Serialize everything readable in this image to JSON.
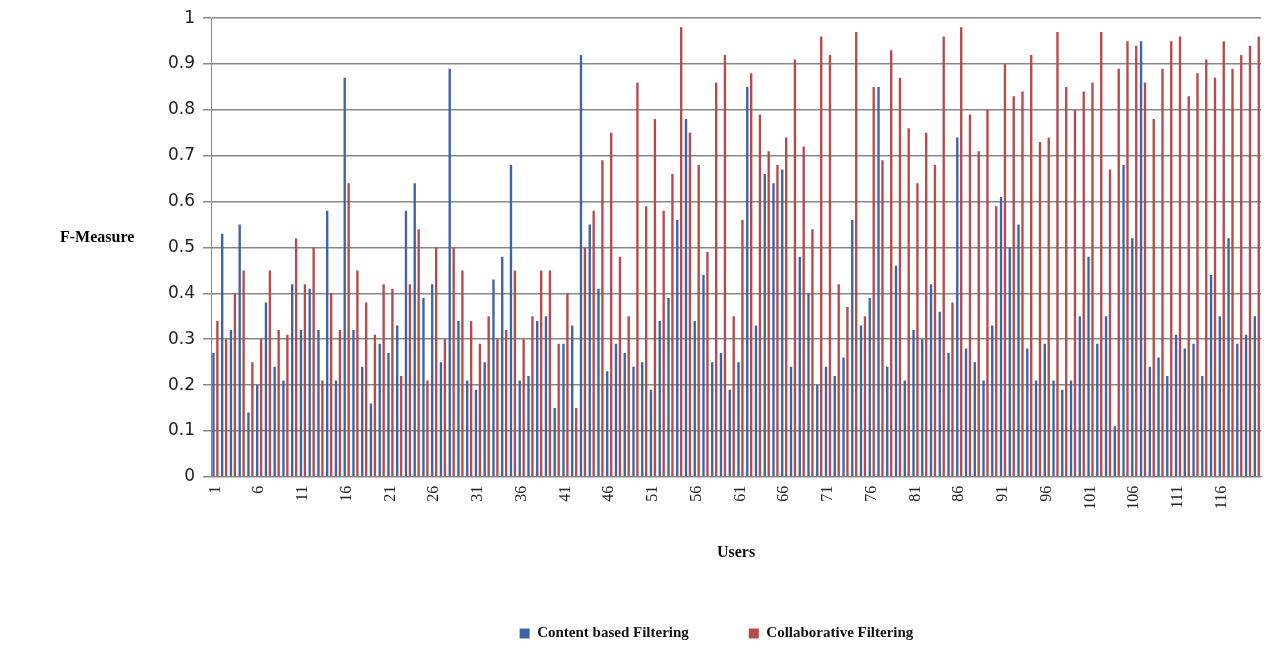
{
  "chart_data": {
    "type": "bar",
    "xlabel": "Users",
    "ylabel": "F-Measure",
    "categories": [
      "1",
      null,
      null,
      null,
      null,
      "6",
      null,
      null,
      null,
      null,
      "11",
      null,
      null,
      null,
      null,
      "16",
      null,
      null,
      null,
      null,
      "21",
      null,
      null,
      null,
      null,
      "26",
      null,
      null,
      null,
      null,
      "31",
      null,
      null,
      null,
      null,
      "36",
      null,
      null,
      null,
      null,
      "41",
      null,
      null,
      null,
      null,
      "46",
      null,
      null,
      null,
      null,
      "51",
      null,
      null,
      null,
      null,
      "56",
      null,
      null,
      null,
      null,
      "61",
      null,
      null,
      null,
      null,
      "66",
      null,
      null,
      null,
      null,
      "71",
      null,
      null,
      null,
      null,
      "76",
      null,
      null,
      null,
      null,
      "81",
      null,
      null,
      null,
      null,
      "86",
      null,
      null,
      null,
      null,
      "91",
      null,
      null,
      null,
      null,
      "96",
      null,
      null,
      null,
      null,
      "101",
      null,
      null,
      null,
      null,
      "106",
      null,
      null,
      null,
      null,
      "111",
      null,
      null,
      null,
      null,
      "116",
      null,
      null,
      null,
      null
    ],
    "series": [
      {
        "name": "Content based Filtering",
        "color": "#3d64a6",
        "values": [
          0.27,
          0.53,
          0.32,
          0.55,
          0.14,
          0.2,
          0.38,
          0.24,
          0.21,
          0.42,
          0.32,
          0.41,
          0.32,
          0.58,
          0.21,
          0.87,
          0.32,
          0.24,
          0.16,
          0.29,
          0.27,
          0.33,
          0.58,
          0.64,
          0.39,
          0.42,
          0.25,
          0.89,
          0.34,
          0.21,
          0.19,
          0.25,
          0.43,
          0.48,
          0.68,
          0.21,
          0.22,
          0.34,
          0.35,
          0.15,
          0.29,
          0.33,
          0.92,
          0.55,
          0.41,
          0.23,
          0.29,
          0.27,
          0.24,
          0.25,
          0.19,
          0.34,
          0.39,
          0.56,
          0.78,
          0.34,
          0.44,
          0.25,
          0.27,
          0.19,
          0.25,
          0.85,
          0.33,
          0.66,
          0.64,
          0.67,
          0.24,
          0.48,
          0.4,
          0.2,
          0.24,
          0.22,
          0.26,
          0.56,
          0.33,
          0.39,
          0.85,
          0.24,
          0.46,
          0.21,
          0.32,
          0.3,
          0.42,
          0.36,
          0.27,
          0.74,
          0.28,
          0.25,
          0.21,
          0.33,
          0.61,
          0.5,
          0.55,
          0.28,
          0.21,
          0.29,
          0.21,
          0.19,
          0.21,
          0.35,
          0.48,
          0.29,
          0.35,
          0.11,
          0.68,
          0.52,
          0.95,
          0.24,
          0.26,
          0.22,
          0.31,
          0.28,
          0.29,
          0.22,
          0.44,
          0.35,
          0.52,
          0.29,
          0.31,
          0.35
        ]
      },
      {
        "name": "Collaborative Filtering",
        "color": "#b84a4c",
        "values": [
          0.34,
          0.3,
          0.4,
          0.45,
          0.25,
          0.3,
          0.45,
          0.32,
          0.31,
          0.52,
          0.42,
          0.5,
          0.21,
          0.4,
          0.32,
          0.64,
          0.45,
          0.38,
          0.31,
          0.42,
          0.41,
          0.22,
          0.42,
          0.54,
          0.21,
          0.5,
          0.3,
          0.5,
          0.45,
          0.34,
          0.29,
          0.35,
          0.3,
          0.32,
          0.45,
          0.3,
          0.35,
          0.45,
          0.45,
          0.29,
          0.4,
          0.15,
          0.5,
          0.58,
          0.69,
          0.75,
          0.48,
          0.35,
          0.86,
          0.59,
          0.78,
          0.58,
          0.66,
          0.98,
          0.75,
          0.68,
          0.49,
          0.86,
          0.92,
          0.35,
          0.56,
          0.88,
          0.79,
          0.71,
          0.68,
          0.74,
          0.91,
          0.72,
          0.54,
          0.96,
          0.92,
          0.42,
          0.37,
          0.97,
          0.35,
          0.85,
          0.69,
          0.93,
          0.87,
          0.76,
          0.64,
          0.75,
          0.68,
          0.96,
          0.38,
          0.98,
          0.79,
          0.71,
          0.8,
          0.59,
          0.9,
          0.83,
          0.84,
          0.92,
          0.73,
          0.74,
          0.97,
          0.85,
          0.8,
          0.84,
          0.86,
          0.97,
          0.67,
          0.89,
          0.95,
          0.94,
          0.86,
          0.78,
          0.89,
          0.95,
          0.96,
          0.83,
          0.88,
          0.91,
          0.87,
          0.95,
          0.89,
          0.92,
          0.94,
          0.96
        ]
      }
    ],
    "ylim": [
      0,
      1
    ],
    "yticks": [
      0,
      0.1,
      0.2,
      0.3,
      0.4,
      0.5,
      0.6,
      0.7,
      0.8,
      0.9,
      1
    ],
    "grid": "y",
    "legend": "bottom"
  }
}
